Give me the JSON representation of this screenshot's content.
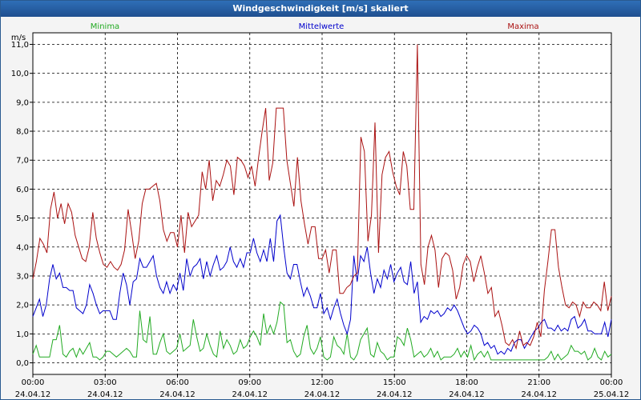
{
  "window": {
    "title": "Windgeschwindigkeit [m/s] skaliert"
  },
  "chart_data": {
    "type": "line",
    "title": "Windgeschwindigkeit [m/s] skaliert",
    "ylabel": "m/s",
    "ylim": [
      -0.4,
      11.4
    ],
    "xlim": [
      0,
      24
    ],
    "grid": true,
    "legend_position": "top",
    "y_ticks": [
      "0,0",
      "1,0",
      "2,0",
      "3,0",
      "4,0",
      "5,0",
      "6,0",
      "7,0",
      "8,0",
      "9,0",
      "10,0",
      "11,0"
    ],
    "x_ticks": [
      {
        "time": "00:00",
        "date": "24.04.12"
      },
      {
        "time": "03:00",
        "date": "24.04.12"
      },
      {
        "time": "06:00",
        "date": "24.04.12"
      },
      {
        "time": "09:00",
        "date": "24.04.12"
      },
      {
        "time": "12:00",
        "date": "24.04.12"
      },
      {
        "time": "15:00",
        "date": "24.04.12"
      },
      {
        "time": "18:00",
        "date": "24.04.12"
      },
      {
        "time": "21:00",
        "date": "24.04.12"
      },
      {
        "time": "00:00",
        "date": "25.04.12"
      }
    ],
    "series": [
      {
        "name": "Minima",
        "color": "#22aa22",
        "values": [
          0.3,
          0.6,
          0.2,
          0.2,
          0.2,
          0.2,
          0.8,
          0.8,
          1.3,
          0.3,
          0.2,
          0.4,
          0.5,
          0.2,
          0.5,
          0.3,
          0.5,
          0.7,
          0.2,
          0.2,
          0.1,
          0.2,
          0.4,
          0.4,
          0.3,
          0.2,
          0.3,
          0.4,
          0.5,
          0.4,
          0.2,
          0.2,
          1.8,
          0.8,
          0.7,
          1.6,
          0.3,
          0.3,
          0.7,
          1.0,
          0.4,
          0.3,
          0.4,
          0.5,
          1.0,
          0.4,
          0.5,
          0.6,
          1.5,
          0.9,
          0.4,
          0.5,
          1.0,
          0.6,
          0.3,
          0.2,
          1.1,
          0.5,
          0.8,
          0.6,
          0.3,
          0.4,
          0.8,
          0.5,
          0.6,
          0.9,
          1.1,
          0.9,
          0.6,
          1.7,
          1.0,
          1.3,
          1.0,
          1.4,
          2.1,
          2.0,
          0.7,
          0.8,
          0.4,
          0.2,
          0.3,
          0.9,
          1.3,
          0.5,
          0.3,
          0.5,
          0.9,
          0.2,
          0.1,
          0.2,
          0.9,
          0.6,
          0.5,
          0.3,
          1.0,
          0.2,
          0.1,
          0.3,
          0.8,
          1.0,
          1.2,
          0.3,
          0.2,
          0.7,
          0.4,
          0.3,
          0.1,
          0.2,
          0.2,
          0.9,
          0.8,
          0.6,
          1.2,
          0.8,
          0.2,
          0.3,
          0.4,
          0.2,
          0.3,
          0.5,
          0.2,
          0.4,
          0.1,
          0.2,
          0.2,
          0.2,
          0.3,
          0.5,
          0.2,
          0.4,
          0.2,
          0.6,
          0.1,
          0.3,
          0.4,
          0.2,
          0.4,
          0.1,
          0.1,
          0.1,
          0.1,
          0.1,
          0.1,
          0.1,
          0.1,
          0.1,
          0.1,
          0.1,
          0.1,
          0.1,
          0.1,
          0.1,
          0.1,
          0.1,
          0.2,
          0.4,
          0.1,
          0.3,
          0.1,
          0.2,
          0.3,
          0.6,
          0.4,
          0.4,
          0.3,
          0.4,
          0.1,
          0.2,
          0.5,
          0.2,
          0.1,
          0.4,
          0.2,
          0.3
        ]
      },
      {
        "name": "Mittelwerte",
        "color": "#0000cc",
        "values": [
          1.6,
          1.9,
          2.2,
          1.6,
          2.0,
          2.9,
          3.4,
          2.9,
          3.1,
          2.6,
          2.6,
          2.5,
          2.5,
          1.9,
          1.8,
          1.7,
          2.0,
          2.7,
          2.4,
          2.0,
          1.7,
          1.8,
          1.8,
          1.8,
          1.5,
          1.5,
          2.4,
          3.1,
          2.7,
          2.0,
          2.8,
          2.9,
          3.6,
          3.3,
          3.3,
          3.5,
          3.7,
          3.0,
          2.6,
          2.4,
          2.8,
          2.4,
          2.7,
          2.5,
          3.1,
          2.5,
          3.6,
          3.0,
          3.3,
          3.4,
          3.6,
          2.9,
          3.5,
          3.0,
          3.4,
          3.7,
          3.2,
          3.3,
          3.5,
          4.0,
          3.5,
          3.3,
          3.6,
          3.3,
          3.8,
          3.8,
          4.3,
          3.8,
          3.5,
          3.9,
          3.5,
          4.3,
          3.5,
          4.9,
          5.1,
          4.0,
          3.1,
          2.9,
          3.4,
          3.4,
          2.8,
          2.3,
          2.6,
          2.3,
          1.9,
          1.9,
          2.4,
          1.7,
          1.9,
          1.5,
          1.9,
          2.2,
          1.7,
          1.3,
          1.0,
          1.5,
          3.7,
          2.8,
          3.7,
          3.5,
          4.0,
          3.1,
          2.4,
          2.9,
          2.6,
          3.2,
          2.9,
          3.4,
          2.8,
          3.1,
          3.3,
          2.8,
          2.7,
          3.5,
          2.4,
          2.8,
          1.4,
          1.6,
          1.5,
          1.8,
          1.7,
          1.8,
          1.6,
          1.7,
          1.9,
          1.8,
          2.0,
          1.8,
          1.5,
          1.2,
          1.0,
          1.1,
          1.3,
          1.2,
          1.0,
          0.6,
          0.7,
          0.5,
          0.6,
          0.3,
          0.4,
          0.3,
          0.5,
          0.4,
          0.7,
          0.8,
          0.8,
          0.5,
          0.7,
          0.9,
          1.1,
          1.2,
          1.4,
          1.5,
          1.2,
          1.2,
          1.1,
          1.3,
          1.1,
          1.2,
          1.1,
          1.5,
          1.6,
          1.2,
          1.3,
          1.5,
          1.1,
          1.1,
          1.0,
          1.0,
          1.0,
          1.4,
          0.9,
          1.5
        ]
      },
      {
        "name": "Maxima",
        "color": "#aa1111",
        "values": [
          2.9,
          3.5,
          4.3,
          4.1,
          3.8,
          5.3,
          5.9,
          5.0,
          5.5,
          4.8,
          5.5,
          5.2,
          4.4,
          4.0,
          3.6,
          3.5,
          4.0,
          5.2,
          4.3,
          3.8,
          3.4,
          3.3,
          3.5,
          3.3,
          3.2,
          3.4,
          3.9,
          5.3,
          4.5,
          3.6,
          4.2,
          5.5,
          6.0,
          6.0,
          6.1,
          6.2,
          5.6,
          4.6,
          4.2,
          4.5,
          4.5,
          4.0,
          5.1,
          3.8,
          5.2,
          4.7,
          4.9,
          5.1,
          6.6,
          6.0,
          7.0,
          5.6,
          6.3,
          6.1,
          6.5,
          7.0,
          6.8,
          5.8,
          7.1,
          7.0,
          6.8,
          6.4,
          6.8,
          6.1,
          7.1,
          8.0,
          8.8,
          6.3,
          6.9,
          8.8,
          8.8,
          8.8,
          7.0,
          6.2,
          5.4,
          7.1,
          5.6,
          4.8,
          4.1,
          4.7,
          4.7,
          3.6,
          3.6,
          3.9,
          3.1,
          3.9,
          3.9,
          2.4,
          2.4,
          2.6,
          2.7,
          3.0,
          3.1,
          7.8,
          7.3,
          4.2,
          5.1,
          8.3,
          3.8,
          6.5,
          7.1,
          7.3,
          6.6,
          6.1,
          5.8,
          7.3,
          6.8,
          5.3,
          5.3,
          11.0,
          3.4,
          2.7,
          4.0,
          4.4,
          3.9,
          2.6,
          3.6,
          3.8,
          3.7,
          3.2,
          2.2,
          2.6,
          3.4,
          3.7,
          3.5,
          2.8,
          3.3,
          3.7,
          3.1,
          2.4,
          2.6,
          1.6,
          1.8,
          1.3,
          0.7,
          0.6,
          0.8,
          0.5,
          1.1,
          0.6,
          0.7,
          0.6,
          0.9,
          1.4,
          0.9,
          2.5,
          3.5,
          4.6,
          4.6,
          3.3,
          2.6,
          2.0,
          1.9,
          2.1,
          2.0,
          1.6,
          2.1,
          1.9,
          1.9,
          2.1,
          2.0,
          1.8,
          2.8,
          1.8,
          2.3
        ]
      }
    ]
  }
}
